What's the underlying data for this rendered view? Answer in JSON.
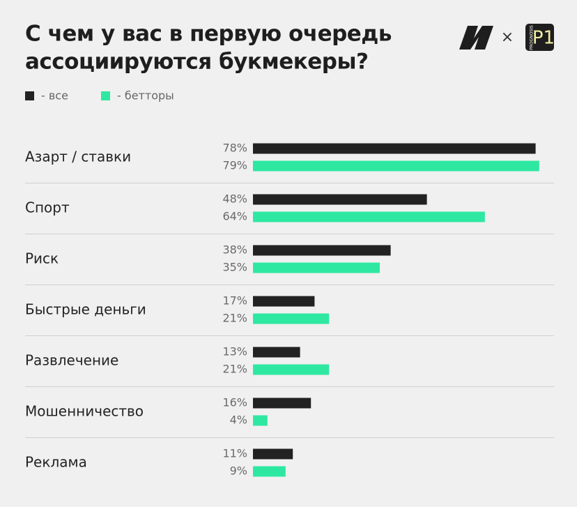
{
  "chart_data": {
    "type": "barh",
    "title": [
      "С чем у вас в первую очередь",
      "ассоциируются букмекеры?"
    ],
    "separator": "×",
    "logo_text": "P1",
    "logo_subtext": "PROGNOSIS",
    "categories": [
      "Азарт / ставки",
      "Спорт",
      "Риск",
      "Быстрые деньги",
      "Развлечение",
      "Мошенничество",
      "Реклама"
    ],
    "series": [
      {
        "name": "- все",
        "color": "#222222",
        "values": [
          78,
          48,
          38,
          17,
          13,
          16,
          11
        ],
        "value_labels": [
          "78%",
          "48%",
          "38%",
          "17%",
          "13%",
          "16%",
          "11%"
        ]
      },
      {
        "name": "- бетторы",
        "color": "#2ee8a2",
        "values": [
          79,
          64,
          35,
          21,
          21,
          4,
          9
        ],
        "value_labels": [
          "79%",
          "64%",
          "35%",
          "21%",
          "21%",
          "4%",
          "9%"
        ]
      }
    ]
  }
}
